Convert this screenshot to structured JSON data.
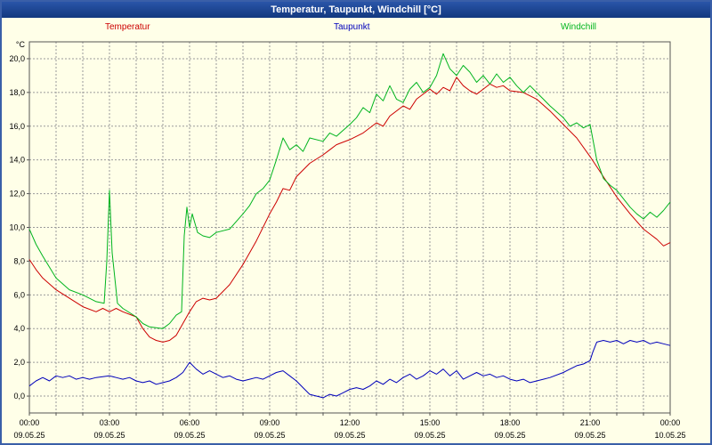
{
  "window": {
    "title": "Temperatur, Taupunkt, Windchill [°C]"
  },
  "colors": {
    "window_border": "#3a5fa8",
    "titlebar": "#15418f",
    "background": "#ffffe8",
    "grid": "#9a9a9a",
    "axis": "#555555",
    "temperatur": "#cc0000",
    "taupunkt": "#0000bb",
    "windchill": "#00b41e"
  },
  "legend": [
    {
      "label": "Temperatur",
      "color": "#cc0000"
    },
    {
      "label": "Taupunkt",
      "color": "#0000bb"
    },
    {
      "label": "Windchill",
      "color": "#00b41e"
    }
  ],
  "chart_data": {
    "type": "line",
    "title": "Temperatur, Taupunkt, Windchill [°C]",
    "ylabel": "°C",
    "y_axis_unit": "°C",
    "ylim": [
      -1,
      21
    ],
    "xlim_hours": [
      0,
      24
    ],
    "grid": "dashed, vertical every hour, horizontal every 2 degrees",
    "y_ticks": [
      {
        "value": 0,
        "label": "0,0"
      },
      {
        "value": 2,
        "label": "2,0"
      },
      {
        "value": 4,
        "label": "4,0"
      },
      {
        "value": 6,
        "label": "6,0"
      },
      {
        "value": 8,
        "label": "8,0"
      },
      {
        "value": 10,
        "label": "10,0"
      },
      {
        "value": 12,
        "label": "12,0"
      },
      {
        "value": 14,
        "label": "14,0"
      },
      {
        "value": 16,
        "label": "16,0"
      },
      {
        "value": 18,
        "label": "18,0"
      },
      {
        "value": 20,
        "label": "20,0"
      }
    ],
    "x_ticks": [
      {
        "hour": 0,
        "time": "00:00",
        "date": "09.05.25"
      },
      {
        "hour": 3,
        "time": "03:00",
        "date": "09.05.25"
      },
      {
        "hour": 6,
        "time": "06:00",
        "date": "09.05.25"
      },
      {
        "hour": 9,
        "time": "09:00",
        "date": "09.05.25"
      },
      {
        "hour": 12,
        "time": "12:00",
        "date": "09.05.25"
      },
      {
        "hour": 15,
        "time": "15:00",
        "date": "09.05.25"
      },
      {
        "hour": 18,
        "time": "18:00",
        "date": "09.05.25"
      },
      {
        "hour": 21,
        "time": "21:00",
        "date": "09.05.25"
      },
      {
        "hour": 24,
        "time": "00:00",
        "date": "10.05.25"
      }
    ],
    "series": [
      {
        "name": "Temperatur",
        "color": "#cc0000",
        "points": [
          [
            0,
            8.1
          ],
          [
            0.25,
            7.5
          ],
          [
            0.5,
            7.0
          ],
          [
            1,
            6.3
          ],
          [
            1.5,
            5.8
          ],
          [
            2,
            5.3
          ],
          [
            2.5,
            5.0
          ],
          [
            2.75,
            5.2
          ],
          [
            3,
            5.0
          ],
          [
            3.25,
            5.2
          ],
          [
            3.5,
            5.0
          ],
          [
            4,
            4.7
          ],
          [
            4.25,
            4.0
          ],
          [
            4.5,
            3.5
          ],
          [
            4.75,
            3.3
          ],
          [
            5,
            3.2
          ],
          [
            5.25,
            3.3
          ],
          [
            5.5,
            3.6
          ],
          [
            5.75,
            4.3
          ],
          [
            6,
            5.0
          ],
          [
            6.25,
            5.6
          ],
          [
            6.5,
            5.8
          ],
          [
            6.75,
            5.7
          ],
          [
            7,
            5.8
          ],
          [
            7.25,
            6.2
          ],
          [
            7.5,
            6.6
          ],
          [
            8,
            7.8
          ],
          [
            8.5,
            9.2
          ],
          [
            9,
            10.8
          ],
          [
            9.25,
            11.5
          ],
          [
            9.5,
            12.3
          ],
          [
            9.75,
            12.2
          ],
          [
            10,
            13.0
          ],
          [
            10.5,
            13.8
          ],
          [
            11,
            14.3
          ],
          [
            11.25,
            14.6
          ],
          [
            11.5,
            14.9
          ],
          [
            12,
            15.2
          ],
          [
            12.5,
            15.6
          ],
          [
            13,
            16.2
          ],
          [
            13.25,
            16.0
          ],
          [
            13.5,
            16.6
          ],
          [
            14,
            17.2
          ],
          [
            14.25,
            17.0
          ],
          [
            14.5,
            17.6
          ],
          [
            15,
            18.2
          ],
          [
            15.25,
            17.9
          ],
          [
            15.5,
            18.3
          ],
          [
            15.75,
            18.1
          ],
          [
            16,
            18.9
          ],
          [
            16.25,
            18.4
          ],
          [
            16.5,
            18.1
          ],
          [
            16.75,
            17.9
          ],
          [
            17,
            18.2
          ],
          [
            17.25,
            18.5
          ],
          [
            17.5,
            18.3
          ],
          [
            17.75,
            18.4
          ],
          [
            18,
            18.1
          ],
          [
            18.5,
            18.0
          ],
          [
            19,
            17.6
          ],
          [
            19.5,
            16.9
          ],
          [
            20,
            16.1
          ],
          [
            20.5,
            15.3
          ],
          [
            21,
            14.2
          ],
          [
            21.5,
            13.0
          ],
          [
            22,
            11.8
          ],
          [
            22.5,
            10.8
          ],
          [
            23,
            9.9
          ],
          [
            23.25,
            9.6
          ],
          [
            23.5,
            9.3
          ],
          [
            23.75,
            8.9
          ],
          [
            24,
            9.1
          ]
        ]
      },
      {
        "name": "Taupunkt",
        "color": "#0000bb",
        "points": [
          [
            0,
            0.6
          ],
          [
            0.25,
            0.9
          ],
          [
            0.5,
            1.1
          ],
          [
            0.75,
            0.9
          ],
          [
            1,
            1.2
          ],
          [
            1.25,
            1.1
          ],
          [
            1.5,
            1.2
          ],
          [
            1.75,
            1.0
          ],
          [
            2,
            1.1
          ],
          [
            2.25,
            1.0
          ],
          [
            2.5,
            1.1
          ],
          [
            3,
            1.2
          ],
          [
            3.25,
            1.1
          ],
          [
            3.5,
            1.0
          ],
          [
            3.75,
            1.1
          ],
          [
            4,
            0.9
          ],
          [
            4.25,
            0.8
          ],
          [
            4.5,
            0.9
          ],
          [
            4.75,
            0.7
          ],
          [
            5,
            0.8
          ],
          [
            5.25,
            0.9
          ],
          [
            5.5,
            1.1
          ],
          [
            5.75,
            1.4
          ],
          [
            6,
            2.0
          ],
          [
            6.25,
            1.6
          ],
          [
            6.5,
            1.3
          ],
          [
            6.75,
            1.5
          ],
          [
            7,
            1.3
          ],
          [
            7.25,
            1.1
          ],
          [
            7.5,
            1.2
          ],
          [
            7.75,
            1.0
          ],
          [
            8,
            0.9
          ],
          [
            8.25,
            1.0
          ],
          [
            8.5,
            1.1
          ],
          [
            8.75,
            1.0
          ],
          [
            9,
            1.2
          ],
          [
            9.25,
            1.4
          ],
          [
            9.5,
            1.5
          ],
          [
            9.75,
            1.2
          ],
          [
            10,
            0.9
          ],
          [
            10.25,
            0.5
          ],
          [
            10.5,
            0.1
          ],
          [
            10.75,
            0.0
          ],
          [
            11,
            -0.1
          ],
          [
            11.25,
            0.1
          ],
          [
            11.5,
            0.0
          ],
          [
            11.75,
            0.2
          ],
          [
            12,
            0.4
          ],
          [
            12.25,
            0.5
          ],
          [
            12.5,
            0.4
          ],
          [
            12.75,
            0.6
          ],
          [
            13,
            0.9
          ],
          [
            13.25,
            0.7
          ],
          [
            13.5,
            1.0
          ],
          [
            13.75,
            0.8
          ],
          [
            14,
            1.1
          ],
          [
            14.25,
            1.3
          ],
          [
            14.5,
            1.0
          ],
          [
            14.75,
            1.2
          ],
          [
            15,
            1.5
          ],
          [
            15.25,
            1.3
          ],
          [
            15.5,
            1.6
          ],
          [
            15.75,
            1.2
          ],
          [
            16,
            1.5
          ],
          [
            16.25,
            1.0
          ],
          [
            16.5,
            1.2
          ],
          [
            16.75,
            1.4
          ],
          [
            17,
            1.2
          ],
          [
            17.25,
            1.3
          ],
          [
            17.5,
            1.1
          ],
          [
            17.75,
            1.2
          ],
          [
            18,
            1.0
          ],
          [
            18.25,
            0.9
          ],
          [
            18.5,
            1.0
          ],
          [
            18.75,
            0.8
          ],
          [
            19,
            0.9
          ],
          [
            19.25,
            1.0
          ],
          [
            19.5,
            1.1
          ],
          [
            20,
            1.4
          ],
          [
            20.25,
            1.6
          ],
          [
            20.5,
            1.8
          ],
          [
            20.75,
            1.9
          ],
          [
            21,
            2.1
          ],
          [
            21.1,
            2.6
          ],
          [
            21.25,
            3.2
          ],
          [
            21.5,
            3.3
          ],
          [
            21.75,
            3.2
          ],
          [
            22,
            3.3
          ],
          [
            22.25,
            3.1
          ],
          [
            22.5,
            3.3
          ],
          [
            22.75,
            3.2
          ],
          [
            23,
            3.3
          ],
          [
            23.25,
            3.1
          ],
          [
            23.5,
            3.2
          ],
          [
            23.75,
            3.1
          ],
          [
            24,
            3.0
          ]
        ]
      },
      {
        "name": "Windchill",
        "color": "#00b41e",
        "points": [
          [
            0,
            9.9
          ],
          [
            0.25,
            9.0
          ],
          [
            0.5,
            8.3
          ],
          [
            1,
            7.0
          ],
          [
            1.5,
            6.3
          ],
          [
            2,
            6.0
          ],
          [
            2.5,
            5.6
          ],
          [
            2.8,
            5.5
          ],
          [
            2.9,
            8.0
          ],
          [
            3.0,
            12.2
          ],
          [
            3.1,
            8.5
          ],
          [
            3.3,
            5.5
          ],
          [
            3.5,
            5.2
          ],
          [
            4,
            4.7
          ],
          [
            4.25,
            4.3
          ],
          [
            4.5,
            4.1
          ],
          [
            5,
            4.0
          ],
          [
            5.25,
            4.3
          ],
          [
            5.5,
            4.8
          ],
          [
            5.7,
            5.0
          ],
          [
            5.8,
            9.5
          ],
          [
            5.9,
            11.2
          ],
          [
            6,
            10.0
          ],
          [
            6.1,
            10.8
          ],
          [
            6.3,
            9.7
          ],
          [
            6.5,
            9.5
          ],
          [
            6.75,
            9.4
          ],
          [
            7,
            9.7
          ],
          [
            7.5,
            9.9
          ],
          [
            8,
            10.8
          ],
          [
            8.25,
            11.3
          ],
          [
            8.5,
            12.0
          ],
          [
            8.75,
            12.3
          ],
          [
            9,
            12.8
          ],
          [
            9.25,
            14.0
          ],
          [
            9.5,
            15.3
          ],
          [
            9.75,
            14.6
          ],
          [
            10,
            14.9
          ],
          [
            10.25,
            14.5
          ],
          [
            10.5,
            15.3
          ],
          [
            11,
            15.1
          ],
          [
            11.25,
            15.6
          ],
          [
            11.5,
            15.4
          ],
          [
            12,
            16.1
          ],
          [
            12.25,
            16.5
          ],
          [
            12.5,
            17.1
          ],
          [
            12.75,
            16.8
          ],
          [
            13,
            17.9
          ],
          [
            13.25,
            17.5
          ],
          [
            13.5,
            18.4
          ],
          [
            13.75,
            17.6
          ],
          [
            14,
            17.4
          ],
          [
            14.25,
            18.2
          ],
          [
            14.5,
            18.6
          ],
          [
            14.75,
            18.0
          ],
          [
            15,
            18.3
          ],
          [
            15.25,
            19.0
          ],
          [
            15.5,
            20.3
          ],
          [
            15.75,
            19.4
          ],
          [
            16,
            19.0
          ],
          [
            16.25,
            19.6
          ],
          [
            16.5,
            19.2
          ],
          [
            16.75,
            18.6
          ],
          [
            17,
            19.0
          ],
          [
            17.25,
            18.5
          ],
          [
            17.5,
            19.1
          ],
          [
            17.75,
            18.6
          ],
          [
            18,
            18.9
          ],
          [
            18.25,
            18.4
          ],
          [
            18.5,
            18.0
          ],
          [
            18.75,
            18.4
          ],
          [
            19,
            18.0
          ],
          [
            19.25,
            17.6
          ],
          [
            19.5,
            17.2
          ],
          [
            20,
            16.5
          ],
          [
            20.25,
            16.0
          ],
          [
            20.5,
            16.2
          ],
          [
            20.75,
            15.9
          ],
          [
            21,
            16.1
          ],
          [
            21.25,
            14.0
          ],
          [
            21.5,
            12.9
          ],
          [
            21.75,
            12.5
          ],
          [
            22,
            12.2
          ],
          [
            22.25,
            11.7
          ],
          [
            22.5,
            11.2
          ],
          [
            22.75,
            10.8
          ],
          [
            23,
            10.5
          ],
          [
            23.25,
            10.9
          ],
          [
            23.5,
            10.6
          ],
          [
            23.75,
            11.0
          ],
          [
            24,
            11.5
          ]
        ]
      }
    ]
  }
}
